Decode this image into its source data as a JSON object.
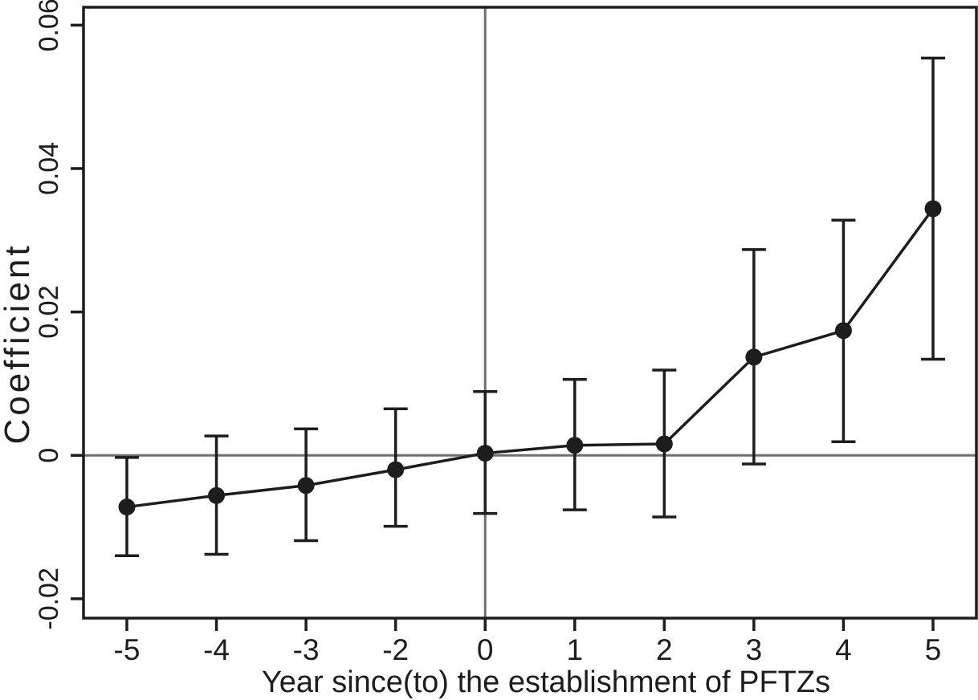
{
  "colors": {
    "ink": "#1d1d1d",
    "reference_line": "#6f6f6f",
    "background": "#ffffff"
  },
  "chart_data": {
    "type": "line",
    "subtype": "event-study-coefficient-plot-with-95ci-error-bars",
    "title": "",
    "xlabel": "Year since(to) the establishment of PFTZs",
    "ylabel": "Coefficient",
    "x_tick_labels": [
      "-5",
      "-4",
      "-3",
      "-2",
      "0",
      "1",
      "2",
      "3",
      "4",
      "5"
    ],
    "y_ticks": [
      -0.02,
      0,
      0.02,
      0.04,
      0.06
    ],
    "y_tick_labels": [
      "-0.02",
      "0",
      "0.02",
      "0.04",
      "0.06"
    ],
    "ylim": [
      -0.0227,
      0.0625
    ],
    "grid": false,
    "legend": "none",
    "reference_lines": {
      "horizontal_at_y": 0,
      "vertical_at_x_label": "0"
    },
    "series": [
      {
        "name": "coefficient",
        "marker": "filled-circle",
        "x": [
          -5,
          -4,
          -3,
          -2,
          0,
          1,
          2,
          3,
          4,
          5
        ],
        "values": [
          -0.0072,
          -0.0056,
          -0.0042,
          -0.002,
          0.0003,
          0.0014,
          0.0016,
          0.0137,
          0.0174,
          0.0344
        ],
        "ci_low": [
          -0.014,
          -0.0138,
          -0.0119,
          -0.0099,
          -0.0081,
          -0.0076,
          -0.0086,
          -0.0012,
          0.0019,
          0.0134
        ],
        "ci_high": [
          -0.0003,
          0.0027,
          0.0037,
          0.0065,
          0.0089,
          0.0106,
          0.0119,
          0.0287,
          0.0328,
          0.0554
        ]
      }
    ]
  }
}
